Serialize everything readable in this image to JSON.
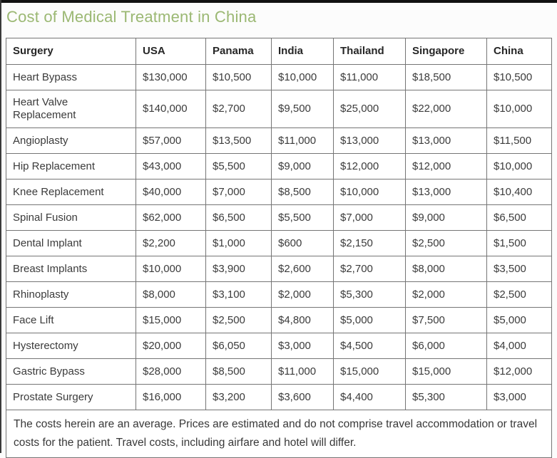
{
  "colors": {
    "title_green": "#9bb873",
    "table_border_gray": "#757575",
    "top_bar_black": "#121212",
    "cell_text": "#3b3b3b"
  },
  "chart_data": {
    "type": "table",
    "title": "Cost of Medical Treatment in China",
    "columns": [
      "Surgery",
      "USA",
      "Panama",
      "India",
      "Thailand",
      "Singapore",
      "China"
    ],
    "rows": [
      [
        "Heart Bypass",
        "$130,000",
        "$10,500",
        "$10,000",
        "$11,000",
        "$18,500",
        "$10,500"
      ],
      [
        "Heart Valve Replacement",
        "$140,000",
        "$2,700",
        "$9,500",
        "$25,000",
        "$22,000",
        "$10,000"
      ],
      [
        "Angioplasty",
        "$57,000",
        "$13,500",
        "$11,000",
        "$13,000",
        "$13,000",
        "$11,500"
      ],
      [
        "Hip Replacement",
        "$43,000",
        "$5,500",
        "$9,000",
        "$12,000",
        "$12,000",
        "$10,000"
      ],
      [
        "Knee Replacement",
        "$40,000",
        "$7,000",
        "$8,500",
        "$10,000",
        "$13,000",
        "$10,400"
      ],
      [
        "Spinal Fusion",
        "$62,000",
        "$6,500",
        "$5,500",
        "$7,000",
        "$9,000",
        "$6,500"
      ],
      [
        "Dental Implant",
        "$2,200",
        "$1,000",
        "$600",
        "$2,150",
        "$2,500",
        "$1,500"
      ],
      [
        "Breast Implants",
        "$10,000",
        "$3,900",
        "$2,600",
        "$2,700",
        "$8,000",
        "$3,500"
      ],
      [
        "Rhinoplasty",
        "$8,000",
        "$3,100",
        "$2,000",
        "$5,300",
        "$2,000",
        "$2,500"
      ],
      [
        "Face Lift",
        "$15,000",
        "$2,500",
        "$4,800",
        "$5,000",
        "$7,500",
        "$5,000"
      ],
      [
        "Hysterectomy",
        "$20,000",
        "$6,050",
        "$3,000",
        "$4,500",
        "$6,000",
        "$4,000"
      ],
      [
        "Gastric Bypass",
        "$28,000",
        "$8,500",
        "$11,000",
        "$15,000",
        "$15,000",
        "$12,000"
      ],
      [
        "Prostate Surgery",
        "$16,000",
        "$3,200",
        "$3,600",
        "$4,400",
        "$5,300",
        "$3,000"
      ]
    ],
    "footnote": "The costs herein are an average. Prices are estimated and do not comprise travel accommodation or travel costs for the patient. Travel costs, including airfare and hotel will differ."
  }
}
